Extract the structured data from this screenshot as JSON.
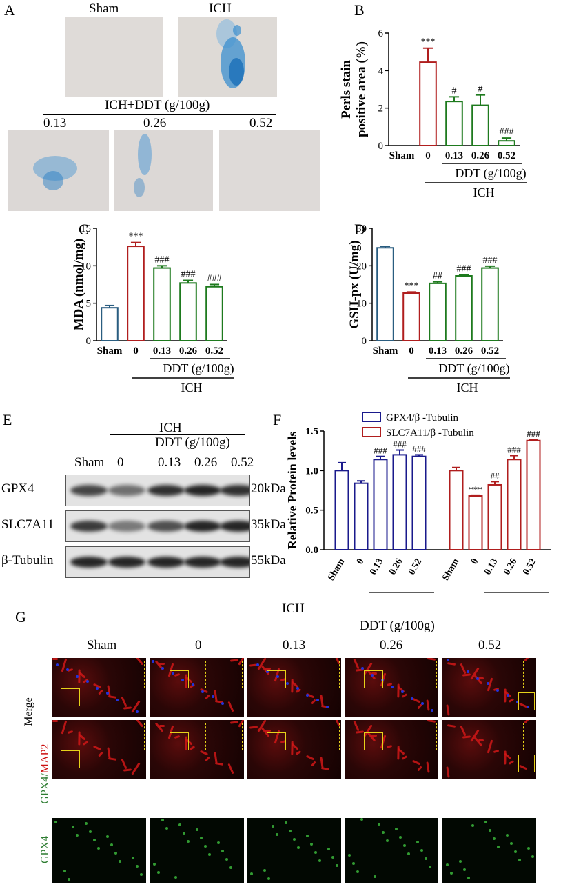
{
  "panel_labels": {
    "a": "A",
    "b": "B",
    "c": "C",
    "d": "D",
    "e": "E",
    "f": "F",
    "g": "G"
  },
  "panelA": {
    "top_labels": [
      "Sham",
      "ICH"
    ],
    "group_label": "ICH+DDT (g/100g)",
    "bottom_labels": [
      "0.13",
      "0.26",
      "0.52"
    ]
  },
  "group_labels": {
    "ich": "ICH",
    "ddt": "DDT (g/100g)"
  },
  "chart_data": [
    {
      "panel": "B",
      "type": "bar",
      "ylabel": "Perls stain positive area (%)",
      "ylabel_lines": [
        "Perls stain",
        "positive area (%)"
      ],
      "categories": [
        "Sham",
        "0",
        "0.13",
        "0.26",
        "0.52"
      ],
      "values": [
        0,
        4.45,
        2.35,
        2.15,
        0.25
      ],
      "errors": [
        0,
        0.75,
        0.25,
        0.55,
        0.15
      ],
      "significance": [
        "",
        "***",
        "#",
        "#",
        "###"
      ],
      "colors": [
        "#2a5d80",
        "#b01e1e",
        "#1e7a1e",
        "#1e7a1e",
        "#1e7a1e"
      ],
      "ylim": [
        0,
        6
      ],
      "yticks": [
        0,
        2,
        4,
        6
      ]
    },
    {
      "panel": "C",
      "type": "bar",
      "ylabel": "MDA (nmol/mg)",
      "categories": [
        "Sham",
        "0",
        "0.13",
        "0.26",
        "0.52"
      ],
      "values": [
        4.4,
        12.6,
        9.7,
        7.7,
        7.2
      ],
      "errors": [
        0.3,
        0.5,
        0.3,
        0.35,
        0.3
      ],
      "significance": [
        "",
        "***",
        "###",
        "###",
        "###"
      ],
      "colors": [
        "#2a5d80",
        "#b01e1e",
        "#1e7a1e",
        "#1e7a1e",
        "#1e7a1e"
      ],
      "ylim": [
        0,
        15
      ],
      "yticks": [
        0,
        5,
        10,
        15
      ]
    },
    {
      "panel": "D",
      "type": "bar",
      "ylabel": "GSH-px (U/mg)",
      "categories": [
        "Sham",
        "0",
        "0.13",
        "0.26",
        "0.52"
      ],
      "values": [
        24.8,
        12.7,
        15.3,
        17.3,
        19.4
      ],
      "errors": [
        0.4,
        0.3,
        0.4,
        0.3,
        0.5
      ],
      "significance": [
        "",
        "***",
        "##",
        "###",
        "###"
      ],
      "colors": [
        "#2a5d80",
        "#b01e1e",
        "#1e7a1e",
        "#1e7a1e",
        "#1e7a1e"
      ],
      "ylim": [
        0,
        30
      ],
      "yticks": [
        0,
        10,
        20,
        30
      ]
    },
    {
      "panel": "F",
      "type": "bar",
      "ylabel": "Relative Protein levels",
      "categories": [
        "Sham",
        "0",
        "0.13",
        "0.26",
        "0.52"
      ],
      "series": [
        {
          "name": "GPX4/β -Tubulin",
          "color": "#1a1a8c",
          "values": [
            1.0,
            0.84,
            1.14,
            1.2,
            1.18
          ],
          "errors": [
            0.1,
            0.03,
            0.04,
            0.06,
            0.02
          ],
          "significance": [
            "",
            "",
            "###",
            "###",
            "###"
          ]
        },
        {
          "name": "SLC7A11/β -Tubulin",
          "color": "#b01e1e",
          "values": [
            1.0,
            0.68,
            0.82,
            1.14,
            1.38
          ],
          "errors": [
            0.04,
            0.01,
            0.04,
            0.05,
            0.01
          ],
          "significance": [
            "",
            "***",
            "##",
            "###",
            "###"
          ]
        }
      ],
      "ylim": [
        0,
        1.5
      ],
      "yticks": [
        0.0,
        0.5,
        1.0,
        1.5
      ]
    }
  ],
  "panelE": {
    "lane_labels": [
      "Sham",
      "0",
      "0.13",
      "0.26",
      "0.52"
    ],
    "rows": [
      {
        "protein": "GPX4",
        "size": "20kDa",
        "intensity": [
          0.75,
          0.55,
          0.85,
          0.9,
          0.85
        ]
      },
      {
        "protein": "SLC7A11",
        "size": "35kDa",
        "intensity": [
          0.8,
          0.5,
          0.7,
          0.9,
          0.9
        ]
      },
      {
        "protein": "β-Tubulin",
        "size": "55kDa",
        "intensity": [
          0.9,
          0.9,
          0.9,
          0.9,
          0.9
        ]
      }
    ]
  },
  "panelG": {
    "column_labels": [
      "Sham",
      "0",
      "0.13",
      "0.26",
      "0.52"
    ],
    "row_labels": {
      "merge": "Merge",
      "gpx4_part": "GPX4/",
      "map2_part": "MAP2",
      "gpx4": "GPX4"
    },
    "colors": {
      "green": "#2e7d32",
      "red": "#cc1111"
    }
  }
}
